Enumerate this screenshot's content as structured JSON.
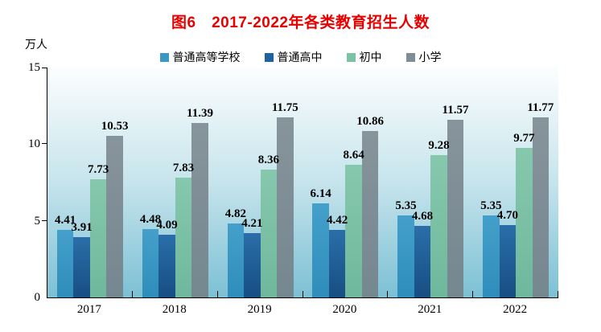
{
  "colors": {
    "title": "#e60000",
    "axis": "#000000",
    "text": "#000000",
    "plot_bg_top": "#fcfefe",
    "plot_bg_mid": "#c6e4ec",
    "plot_bg_bottom": "#7cc0d4"
  },
  "chart_data": {
    "type": "bar",
    "title": "图6　2017-2022年各类教育招生人数",
    "unit": "万人",
    "categories": [
      "2017",
      "2018",
      "2019",
      "2020",
      "2021",
      "2022"
    ],
    "series": [
      {
        "name": "普通高等学校",
        "color": "#3b97c4",
        "color_top": "#44a0ca",
        "color_bottom": "#2f8dbb",
        "values": [
          4.41,
          4.48,
          4.82,
          6.14,
          5.35,
          5.35
        ]
      },
      {
        "name": "普通高中",
        "color": "#1f62a0",
        "color_top": "#2a6ea9",
        "color_bottom": "#174e83",
        "values": [
          3.91,
          4.09,
          4.21,
          4.42,
          4.68,
          4.7
        ]
      },
      {
        "name": "初中",
        "color": "#7cc2a7",
        "color_top": "#86c8ad",
        "color_bottom": "#6fb89d",
        "values": [
          7.73,
          7.83,
          8.36,
          8.64,
          9.28,
          9.77
        ]
      },
      {
        "name": "小学",
        "color": "#7f8e96",
        "color_top": "#87949c",
        "color_bottom": "#75878f",
        "values": [
          10.53,
          11.39,
          11.75,
          10.86,
          11.57,
          11.77
        ]
      }
    ],
    "ylim": [
      0,
      15
    ],
    "yticks": [
      0,
      5,
      10,
      15
    ],
    "grid": false,
    "legend_position": "top",
    "value_labels": true
  }
}
